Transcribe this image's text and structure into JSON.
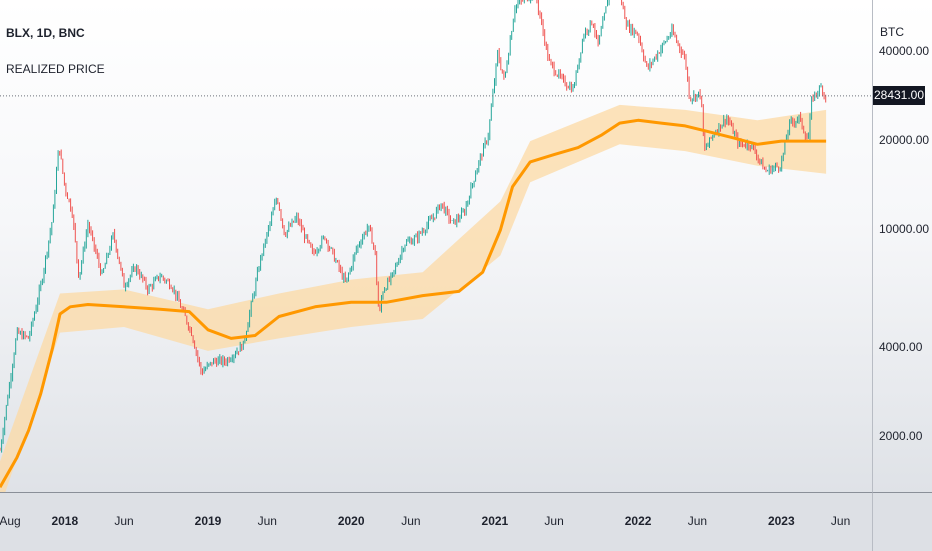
{
  "legend": {
    "symbol_line": "BLX, 1D, BNC",
    "indicator": "REALIZED PRICE"
  },
  "axis": {
    "currency": "BTC",
    "last_price": "28431.00"
  },
  "colors": {
    "up_candle": "#26a69a",
    "down_candle": "#ef5350",
    "realized_price": "#ff9800",
    "band_fill": "#fcd9a4"
  },
  "chart_data": {
    "type": "line",
    "title": "",
    "xlabel": "",
    "ylabel": "",
    "y_scale": "log",
    "ylim": [
      1300,
      60000
    ],
    "x_range": [
      "2017-07-20",
      "2023-08-20"
    ],
    "y_ticks": [
      {
        "value": 40000,
        "label": "40000.00"
      },
      {
        "value": 20000,
        "label": "20000.00"
      },
      {
        "value": 10000,
        "label": "10000.00"
      },
      {
        "value": 4000,
        "label": "4000.00"
      },
      {
        "value": 2000,
        "label": "2000.00"
      }
    ],
    "x_ticks": [
      {
        "date": "2017-08-01",
        "label": "Aug",
        "major": false
      },
      {
        "date": "2018-01-01",
        "label": "2018",
        "major": true
      },
      {
        "date": "2018-06-01",
        "label": "Jun",
        "major": false
      },
      {
        "date": "2019-01-01",
        "label": "2019",
        "major": true
      },
      {
        "date": "2019-06-01",
        "label": "Jun",
        "major": false
      },
      {
        "date": "2020-01-01",
        "label": "2020",
        "major": true
      },
      {
        "date": "2020-06-01",
        "label": "Jun",
        "major": false
      },
      {
        "date": "2021-01-01",
        "label": "2021",
        "major": true
      },
      {
        "date": "2021-06-01",
        "label": "Jun",
        "major": false
      },
      {
        "date": "2022-01-01",
        "label": "2022",
        "major": true
      },
      {
        "date": "2022-06-01",
        "label": "Jun",
        "major": false
      },
      {
        "date": "2023-01-01",
        "label": "2023",
        "major": true
      },
      {
        "date": "2023-06-01",
        "label": "Jun",
        "major": false
      }
    ],
    "last_price_line": 28431,
    "price_series": {
      "x": [
        "2017-07-20",
        "2017-09-01",
        "2017-10-01",
        "2017-11-01",
        "2017-12-01",
        "2017-12-17",
        "2018-01-01",
        "2018-01-20",
        "2018-02-06",
        "2018-03-01",
        "2018-04-06",
        "2018-05-05",
        "2018-06-01",
        "2018-07-01",
        "2018-08-01",
        "2018-09-01",
        "2018-10-01",
        "2018-11-20",
        "2018-12-15",
        "2019-01-15",
        "2019-02-15",
        "2019-04-01",
        "2019-05-15",
        "2019-06-26",
        "2019-07-15",
        "2019-08-15",
        "2019-09-25",
        "2019-10-26",
        "2019-12-18",
        "2020-01-15",
        "2020-02-13",
        "2020-03-01",
        "2020-03-12",
        "2020-03-20",
        "2020-04-15",
        "2020-05-15",
        "2020-06-15",
        "2020-07-27",
        "2020-08-17",
        "2020-09-15",
        "2020-10-15",
        "2020-11-15",
        "2020-12-15",
        "2021-01-08",
        "2021-01-25",
        "2021-02-21",
        "2021-03-13",
        "2021-04-14",
        "2021-05-19",
        "2021-06-22",
        "2021-07-20",
        "2021-08-15",
        "2021-09-07",
        "2021-09-21",
        "2021-10-20",
        "2021-11-10",
        "2021-12-04",
        "2022-01-01",
        "2022-01-24",
        "2022-03-28",
        "2022-05-01",
        "2022-05-12",
        "2022-06-10",
        "2022-06-18",
        "2022-07-15",
        "2022-08-15",
        "2022-09-15",
        "2022-10-15",
        "2022-11-09",
        "2022-11-21",
        "2022-12-31",
        "2023-01-21",
        "2023-02-15",
        "2023-03-10",
        "2023-03-20",
        "2023-04-14",
        "2023-04-25"
      ],
      "y": [
        1800,
        4500,
        4300,
        6500,
        11000,
        19500,
        14000,
        11500,
        6900,
        10500,
        7000,
        9700,
        6500,
        7500,
        6300,
        7000,
        6500,
        4500,
        3300,
        3600,
        3600,
        4100,
        8000,
        13000,
        9700,
        11000,
        8300,
        9500,
        6600,
        8700,
        10300,
        8600,
        5000,
        6200,
        7000,
        9000,
        9400,
        11000,
        12300,
        10500,
        11500,
        16000,
        21000,
        39500,
        32000,
        57000,
        60000,
        63500,
        37000,
        32000,
        30000,
        46000,
        51000,
        42000,
        64000,
        67000,
        49000,
        46000,
        35000,
        47000,
        38000,
        28000,
        29000,
        18500,
        21500,
        24000,
        19500,
        19500,
        17000,
        15800,
        16600,
        22800,
        24000,
        20000,
        28000,
        30500,
        27500
      ]
    },
    "series": [
      {
        "name": "REALIZED PRICE",
        "x": [
          "2017-07-20",
          "2017-09-01",
          "2017-10-01",
          "2017-11-01",
          "2017-12-01",
          "2017-12-20",
          "2018-01-15",
          "2018-03-01",
          "2018-06-01",
          "2018-09-01",
          "2018-11-14",
          "2019-01-01",
          "2019-03-01",
          "2019-05-01",
          "2019-07-01",
          "2019-10-01",
          "2020-01-01",
          "2020-04-01",
          "2020-07-01",
          "2020-10-01",
          "2020-12-01",
          "2021-01-15",
          "2021-02-15",
          "2021-04-01",
          "2021-06-01",
          "2021-08-01",
          "2021-10-01",
          "2021-11-15",
          "2022-01-01",
          "2022-03-01",
          "2022-05-01",
          "2022-07-01",
          "2022-09-01",
          "2022-11-01",
          "2023-01-01",
          "2023-03-01",
          "2023-04-25"
        ],
        "values": [
          1350,
          1700,
          2100,
          2800,
          4000,
          5200,
          5500,
          5600,
          5500,
          5400,
          5300,
          4600,
          4300,
          4400,
          5100,
          5500,
          5700,
          5700,
          6000,
          6200,
          7200,
          10000,
          14000,
          17000,
          18000,
          19000,
          21000,
          23000,
          23500,
          23000,
          22500,
          21500,
          20500,
          19500,
          20000,
          20000,
          20000
        ]
      },
      {
        "name": "band upper",
        "x": [
          "2017-07-20",
          "2017-12-20",
          "2018-06-01",
          "2019-01-01",
          "2019-07-01",
          "2020-01-01",
          "2020-07-01",
          "2021-01-15",
          "2021-04-01",
          "2021-11-15",
          "2022-05-01",
          "2022-11-01",
          "2023-04-25"
        ],
        "values": [
          1650,
          6100,
          6300,
          5400,
          6100,
          6800,
          7200,
          12500,
          20000,
          26500,
          25500,
          23500,
          25500
        ]
      },
      {
        "name": "band lower",
        "x": [
          "2017-07-20",
          "2017-12-20",
          "2018-06-01",
          "2019-01-01",
          "2019-07-01",
          "2020-01-01",
          "2020-07-01",
          "2021-01-15",
          "2021-04-01",
          "2021-11-15",
          "2022-05-01",
          "2022-11-01",
          "2023-04-25"
        ],
        "values": [
          1150,
          4500,
          4700,
          3900,
          4300,
          4700,
          5000,
          8200,
          14500,
          19500,
          18500,
          16500,
          15500
        ]
      }
    ]
  }
}
